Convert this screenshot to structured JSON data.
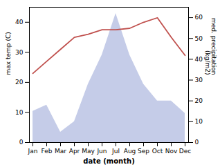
{
  "chart_data": {
    "type": "line",
    "xlabel": "date (month)",
    "ylabel": "max temp (C)",
    "y2label": "med. precipitation\n(kg/m2)",
    "categories": [
      "Jan",
      "Feb",
      "Mar",
      "Apr",
      "May",
      "Jun",
      "Jul",
      "Aug",
      "Sep",
      "Oct",
      "Nov",
      "Dec"
    ],
    "series": [
      {
        "type": "area",
        "axis": "y2",
        "color": "#c5cce8",
        "values": [
          15,
          18,
          5,
          10,
          28,
          42,
          62,
          42,
          28,
          20,
          20,
          14
        ]
      },
      {
        "type": "line",
        "color": "#c0504d",
        "values": [
          23,
          27,
          31,
          35,
          36,
          37.5,
          37.5,
          38,
          40,
          41.5,
          35,
          29
        ]
      }
    ],
    "ylim": [
      0,
      45
    ],
    "yticks": [
      0,
      10,
      20,
      30,
      40
    ],
    "y2lim": [
      0,
      65
    ],
    "y2ticks": [
      0,
      10,
      20,
      30,
      40,
      50,
      60
    ],
    "grid": false
  }
}
